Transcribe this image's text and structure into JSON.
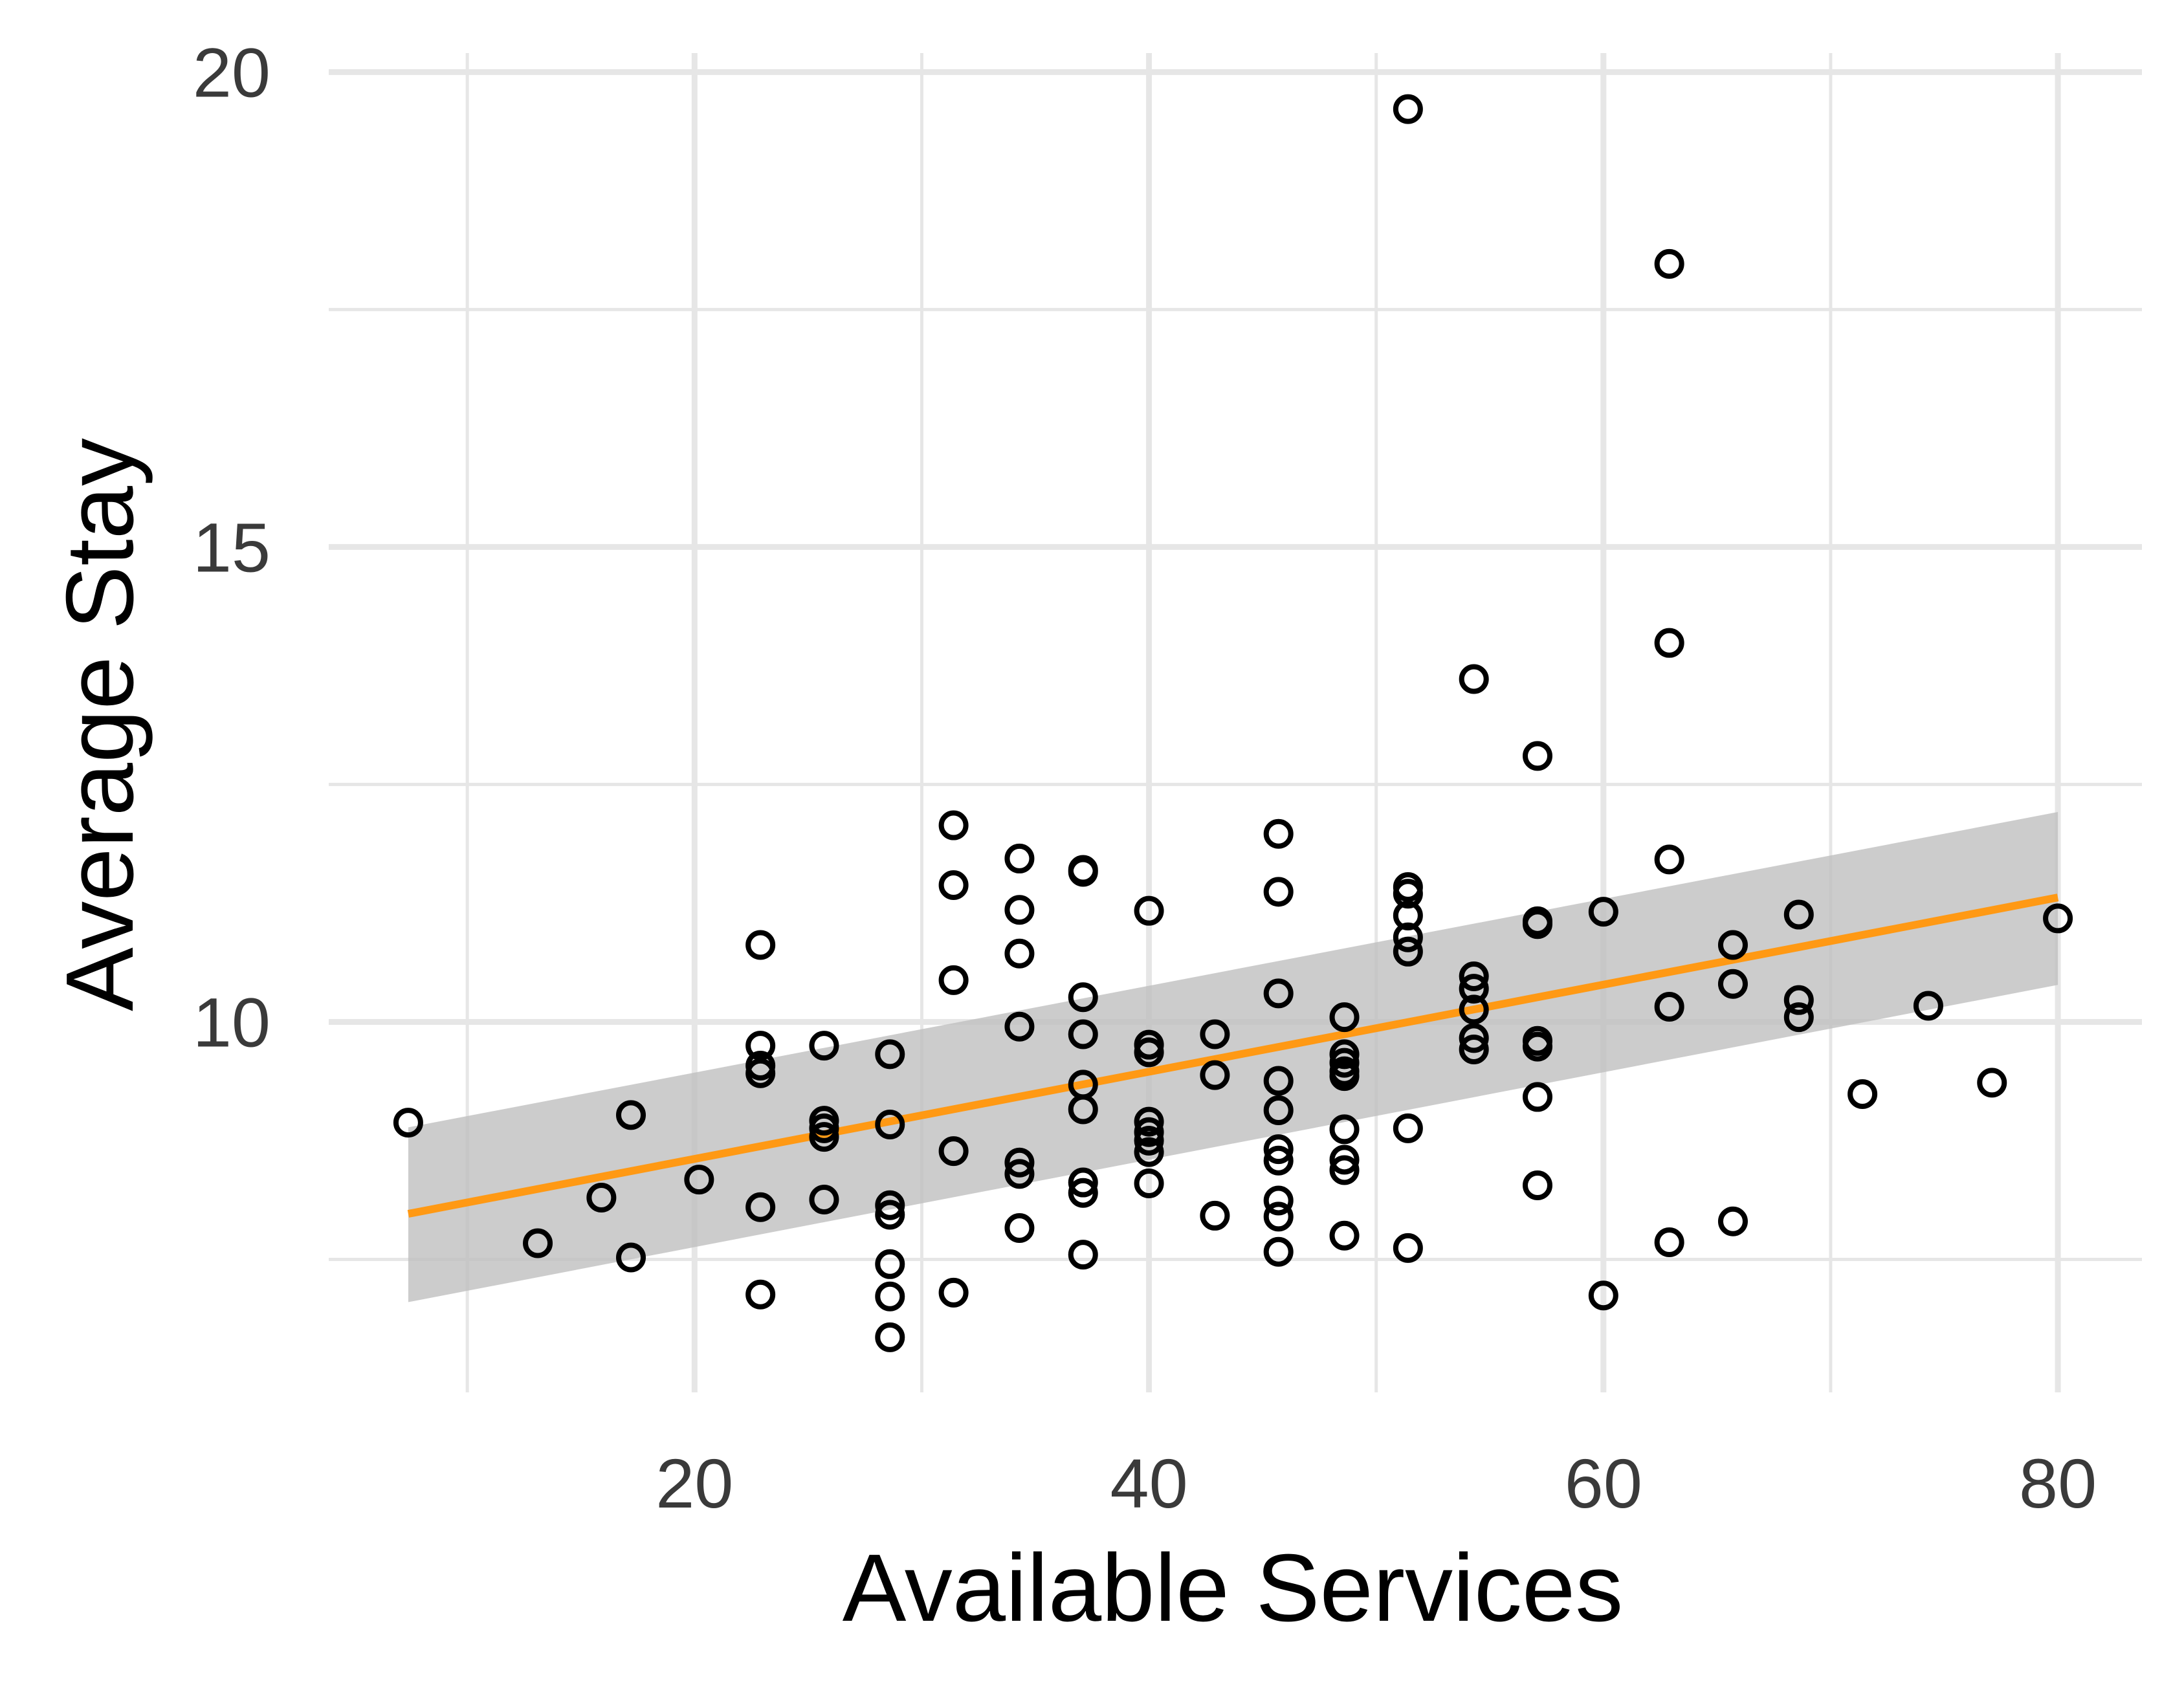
{
  "chart_data": {
    "type": "scatter",
    "xlabel": "Available Services",
    "ylabel": "Average Stay",
    "xlim": [
      3.9,
      83.7
    ],
    "ylim": [
      6.1,
      20.2
    ],
    "x_major_ticks": [
      20,
      40,
      60,
      80
    ],
    "x_minor_ticks": [
      10,
      30,
      50,
      70
    ],
    "y_major_ticks": [
      10,
      15,
      20
    ],
    "y_minor_ticks": [
      7.5,
      12.5,
      17.5
    ],
    "x_tick_labels": [
      "20",
      "40",
      "60",
      "80"
    ],
    "y_tick_labels": [
      "10",
      "15",
      "20"
    ],
    "grid": true,
    "legend": "none",
    "point_color": "#000000",
    "trend_color": "#ff9914",
    "band_color": "#bebebe",
    "trend": {
      "method": "linear",
      "x_range": [
        7.4,
        80
      ],
      "fit": [
        7.98,
        11.31
      ],
      "band_lower": [
        7.05,
        10.39
      ],
      "band_upper": [
        8.89,
        12.21
      ]
    },
    "points": [
      [
        7.4,
        8.94
      ],
      [
        13.1,
        7.67
      ],
      [
        15.9,
        8.15
      ],
      [
        17.2,
        9.02
      ],
      [
        17.2,
        7.52
      ],
      [
        20.2,
        8.34
      ],
      [
        22.9,
        10.81
      ],
      [
        22.9,
        9.75
      ],
      [
        22.9,
        9.54
      ],
      [
        22.9,
        9.46
      ],
      [
        22.9,
        8.05
      ],
      [
        22.9,
        7.13
      ],
      [
        25.7,
        9.75
      ],
      [
        25.7,
        8.96
      ],
      [
        25.7,
        8.88
      ],
      [
        25.7,
        8.79
      ],
      [
        25.7,
        8.13
      ],
      [
        28.6,
        9.66
      ],
      [
        28.6,
        8.92
      ],
      [
        28.6,
        8.07
      ],
      [
        28.6,
        7.97
      ],
      [
        28.6,
        7.45
      ],
      [
        28.6,
        7.11
      ],
      [
        28.6,
        6.68
      ],
      [
        31.4,
        12.07
      ],
      [
        31.4,
        11.44
      ],
      [
        31.4,
        10.44
      ],
      [
        31.4,
        8.64
      ],
      [
        31.4,
        7.15
      ],
      [
        34.3,
        11.72
      ],
      [
        34.3,
        11.18
      ],
      [
        34.3,
        10.72
      ],
      [
        34.3,
        9.95
      ],
      [
        34.3,
        8.52
      ],
      [
        34.3,
        8.4
      ],
      [
        34.3,
        7.83
      ],
      [
        37.1,
        11.58
      ],
      [
        37.1,
        11.6
      ],
      [
        37.1,
        10.26
      ],
      [
        37.1,
        9.87
      ],
      [
        37.1,
        9.34
      ],
      [
        37.1,
        9.08
      ],
      [
        37.1,
        8.31
      ],
      [
        37.1,
        8.2
      ],
      [
        37.1,
        7.55
      ],
      [
        40.0,
        11.17
      ],
      [
        40.0,
        9.76
      ],
      [
        40.0,
        9.68
      ],
      [
        40.0,
        8.95
      ],
      [
        40.0,
        8.84
      ],
      [
        40.0,
        8.75
      ],
      [
        40.0,
        8.63
      ],
      [
        40.0,
        8.3
      ],
      [
        42.9,
        9.87
      ],
      [
        42.9,
        9.44
      ],
      [
        42.9,
        7.96
      ],
      [
        45.7,
        11.98
      ],
      [
        45.7,
        11.37
      ],
      [
        45.7,
        10.3
      ],
      [
        45.7,
        9.38
      ],
      [
        45.7,
        9.07
      ],
      [
        45.7,
        8.66
      ],
      [
        45.7,
        8.54
      ],
      [
        45.7,
        8.12
      ],
      [
        45.7,
        7.95
      ],
      [
        45.7,
        7.58
      ],
      [
        48.6,
        10.05
      ],
      [
        48.6,
        9.66
      ],
      [
        48.6,
        9.57
      ],
      [
        48.6,
        9.48
      ],
      [
        48.6,
        9.43
      ],
      [
        48.6,
        8.87
      ],
      [
        48.6,
        8.55
      ],
      [
        48.6,
        8.44
      ],
      [
        48.6,
        7.75
      ],
      [
        51.4,
        19.61
      ],
      [
        51.4,
        11.42
      ],
      [
        51.4,
        11.35
      ],
      [
        51.4,
        11.12
      ],
      [
        51.4,
        10.89
      ],
      [
        51.4,
        10.74
      ],
      [
        51.4,
        8.88
      ],
      [
        51.4,
        7.62
      ],
      [
        54.3,
        13.61
      ],
      [
        54.3,
        10.48
      ],
      [
        54.3,
        10.35
      ],
      [
        54.3,
        10.13
      ],
      [
        54.3,
        9.83
      ],
      [
        54.3,
        9.71
      ],
      [
        57.1,
        12.8
      ],
      [
        57.1,
        11.06
      ],
      [
        57.1,
        11.03
      ],
      [
        57.1,
        9.8
      ],
      [
        57.1,
        9.74
      ],
      [
        57.1,
        9.21
      ],
      [
        57.1,
        8.28
      ],
      [
        60.0,
        11.16
      ],
      [
        60.0,
        7.12
      ],
      [
        62.9,
        17.98
      ],
      [
        62.9,
        13.99
      ],
      [
        62.9,
        11.71
      ],
      [
        62.9,
        10.16
      ],
      [
        62.9,
        7.68
      ],
      [
        65.7,
        10.81
      ],
      [
        65.7,
        10.4
      ],
      [
        65.7,
        7.9
      ],
      [
        68.6,
        11.13
      ],
      [
        68.6,
        10.23
      ],
      [
        68.6,
        10.05
      ],
      [
        71.4,
        9.24
      ],
      [
        74.3,
        10.17
      ],
      [
        77.1,
        9.36
      ],
      [
        80.0,
        11.09
      ]
    ]
  }
}
